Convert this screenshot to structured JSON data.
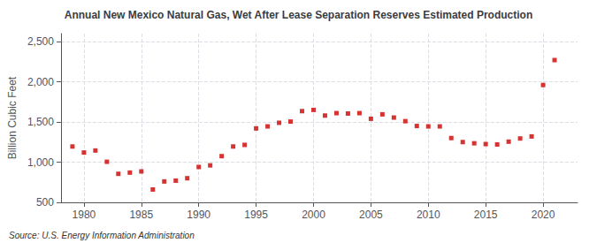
{
  "chart_data": {
    "type": "scatter",
    "title": "Annual New Mexico Natural Gas, Wet After Lease Separation Reserves Estimated Production",
    "ylabel": "Billion Cubic Feet",
    "annotations": [
      "Source: U.S. Energy Information Administration"
    ],
    "x": [
      1979,
      1980,
      1981,
      1982,
      1983,
      1984,
      1985,
      1986,
      1987,
      1988,
      1989,
      1990,
      1991,
      1992,
      1993,
      1994,
      1995,
      1996,
      1997,
      1998,
      1999,
      2000,
      2001,
      2002,
      2003,
      2004,
      2005,
      2006,
      2007,
      2008,
      2009,
      2010,
      2011,
      2012,
      2013,
      2014,
      2015,
      2016,
      2017,
      2018,
      2019,
      2020,
      2021
    ],
    "values": [
      1195,
      1120,
      1145,
      1005,
      855,
      870,
      885,
      660,
      760,
      770,
      800,
      940,
      960,
      1075,
      1195,
      1215,
      1420,
      1445,
      1490,
      1505,
      1635,
      1650,
      1580,
      1610,
      1605,
      1610,
      1540,
      1595,
      1555,
      1510,
      1450,
      1445,
      1445,
      1300,
      1250,
      1235,
      1225,
      1220,
      1255,
      1295,
      1320,
      1960,
      2270
    ],
    "color": "#cc0000",
    "marker": "square",
    "xlim": [
      1978,
      2023
    ],
    "xticks": [
      1980,
      1985,
      1990,
      1995,
      2000,
      2005,
      2010,
      2015,
      2020
    ],
    "ylim": [
      500,
      2600
    ],
    "yticks": [
      500,
      {
        "value": 1000,
        "label": "1,000"
      },
      {
        "value": 1500,
        "label": "1,500"
      },
      {
        "value": 2000,
        "label": "2,000"
      },
      {
        "value": 2500,
        "label": "2,500"
      }
    ],
    "grid": true
  }
}
